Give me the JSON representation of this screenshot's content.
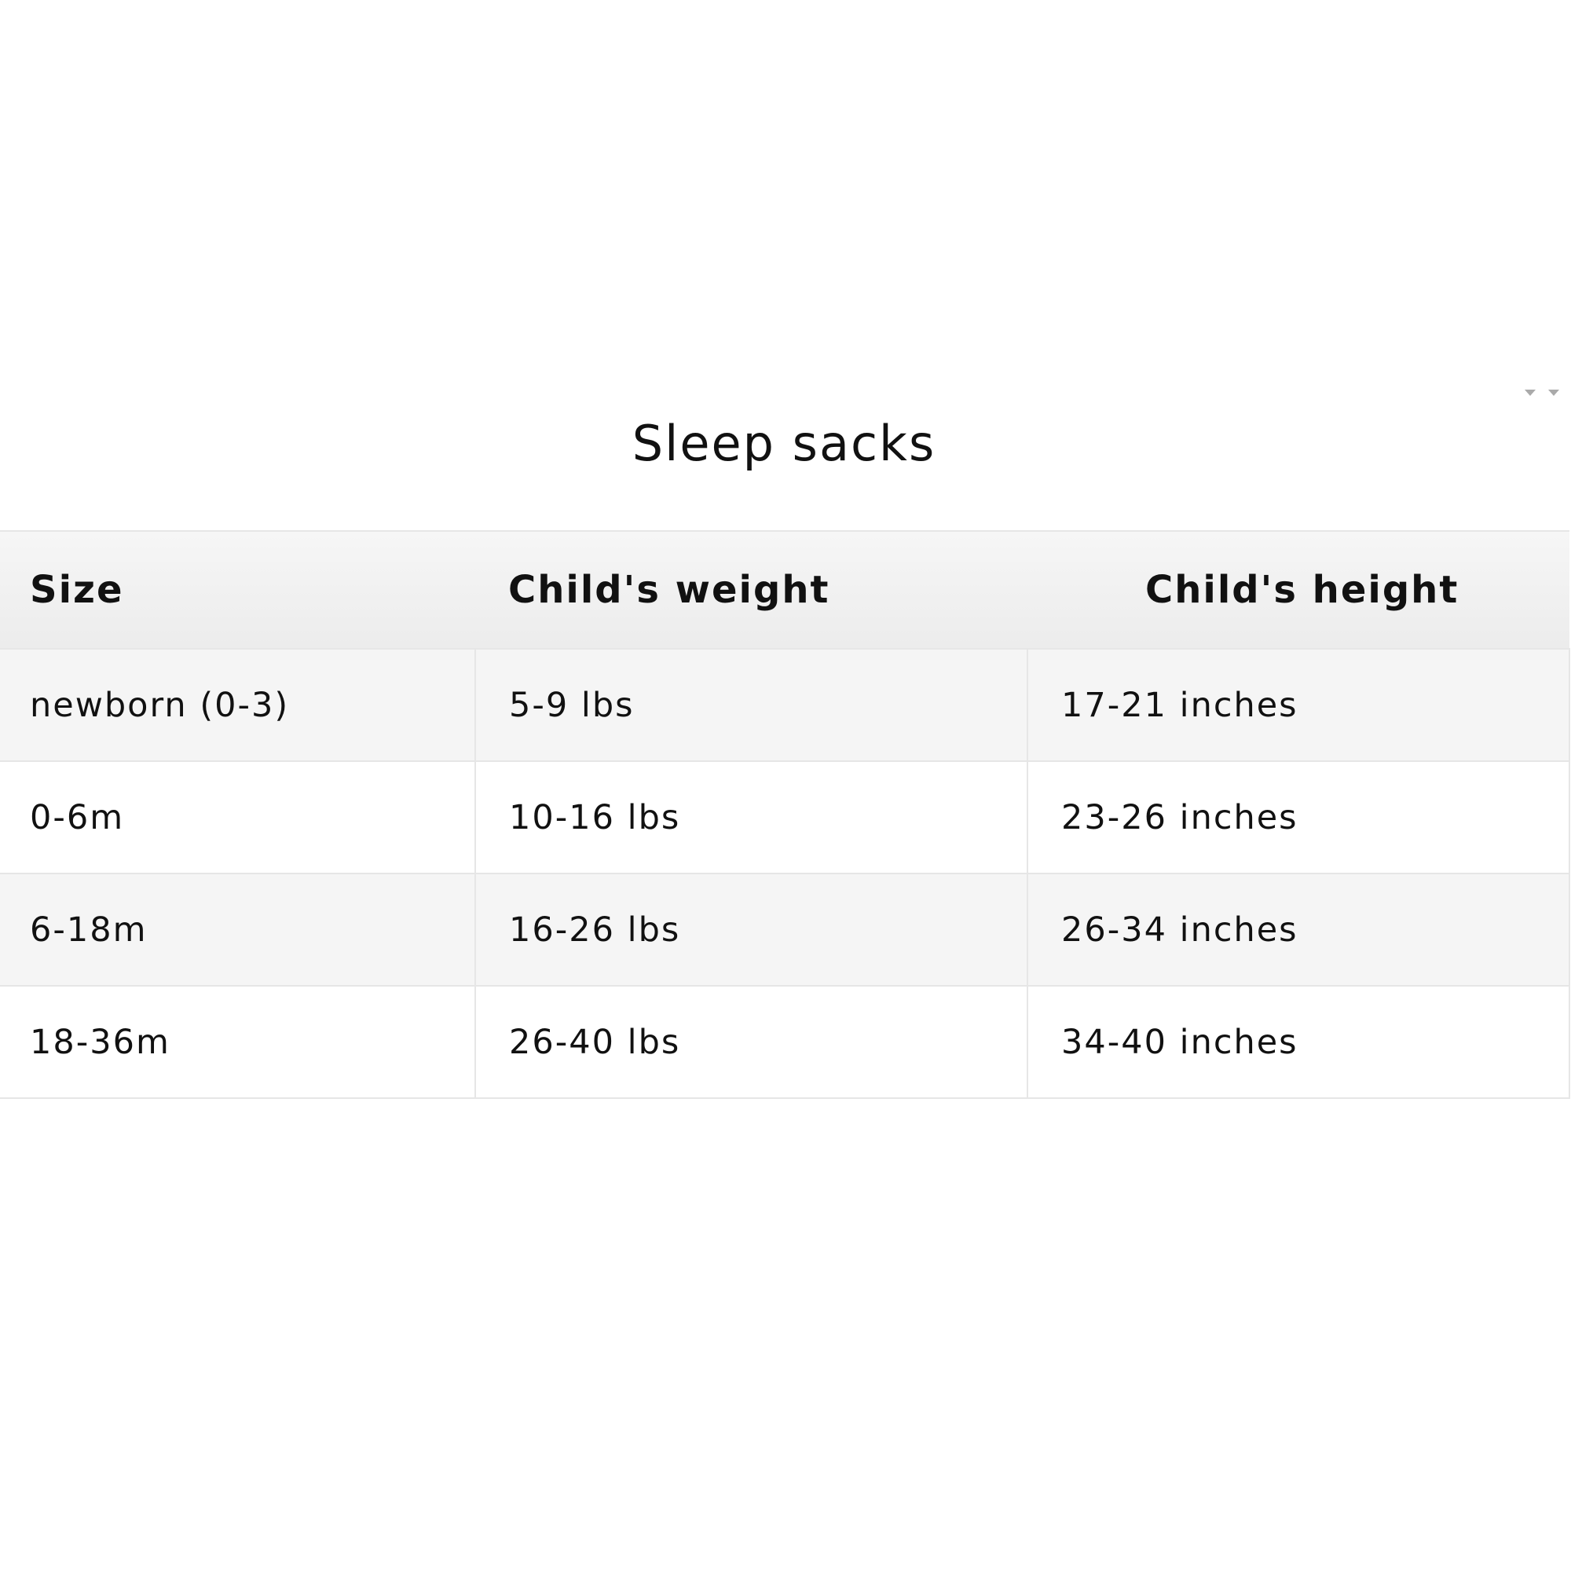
{
  "title": "Sleep sacks",
  "table": {
    "headers": [
      "Size",
      "Child's weight",
      "Child's height"
    ],
    "rows": [
      [
        "newborn (0-3)",
        "5-9 lbs",
        "17-21 inches"
      ],
      [
        "0-6m",
        "10-16 lbs",
        "23-26 inches"
      ],
      [
        "6-18m",
        "16-26 lbs",
        "26-34 inches"
      ],
      [
        "18-36m",
        "26-40 lbs",
        "34-40 inches"
      ]
    ]
  },
  "icons": {
    "scroll_arrows": "chevron-down-icon"
  }
}
